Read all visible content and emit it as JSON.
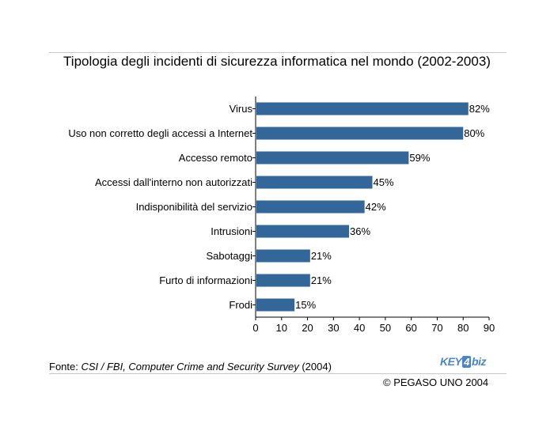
{
  "chart_data": {
    "type": "bar",
    "orientation": "horizontal",
    "title": "Tipologia degli incidenti di sicurezza informatica nel mondo (2002-2003)",
    "categories": [
      "Virus",
      "Uso non corretto degli accessi a Internet",
      "Accesso remoto",
      "Accessi dall'interno non autorizzati",
      "Indisponibilità del servizio",
      "Intrusioni",
      "Sabotaggi",
      "Furto di informazioni",
      "Frodi"
    ],
    "values": [
      82,
      80,
      59,
      45,
      42,
      36,
      21,
      21,
      15
    ],
    "value_labels": [
      "82%",
      "80%",
      "59%",
      "45%",
      "42%",
      "36%",
      "21%",
      "21%",
      "15%"
    ],
    "xlim": [
      0,
      90
    ],
    "xticks": [
      "0",
      "10",
      "20",
      "30",
      "40",
      "50",
      "60",
      "70",
      "80",
      "90"
    ],
    "bar_color": "#336699",
    "grid": false
  },
  "footer": {
    "source_prefix": "Fonte: ",
    "source_title": "CSI / FBI, Computer Crime and Security Survey",
    "source_suffix": " (2004)",
    "logo_left": "KEY",
    "logo_four": "4",
    "logo_right": "biz",
    "copyright": "© PEGASO UNO 2004"
  }
}
